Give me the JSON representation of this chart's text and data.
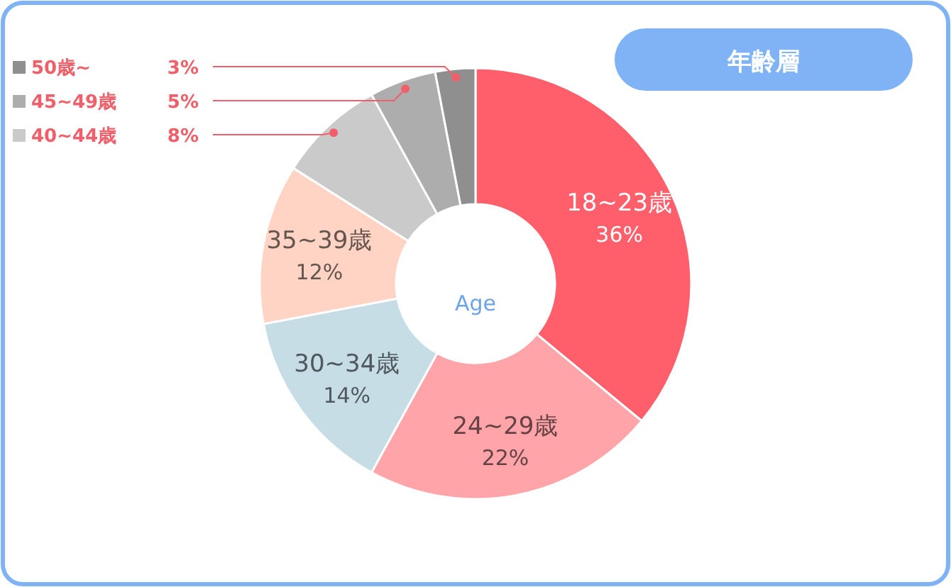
{
  "chart_data": {
    "type": "donut",
    "legend": "top left",
    "title": "年齢層",
    "annotations": [
      "Age"
    ],
    "categories": [
      "18~23歳",
      "24~29歳",
      "30~34歳",
      "35~39歳",
      "40~44歳",
      "45~49歳",
      "50歳~"
    ],
    "values": [
      36,
      22,
      14,
      12,
      8,
      5,
      3
    ],
    "value_labels": [
      "36%",
      "22%",
      "14%",
      "12%",
      "8%",
      "5%",
      "3%"
    ],
    "colors": [
      "#ff5f6a",
      "#ffa4a9",
      "#c6dde6",
      "#ffd4c5",
      "#cacaca",
      "#adadad",
      "#8f8f8f"
    ]
  }
}
